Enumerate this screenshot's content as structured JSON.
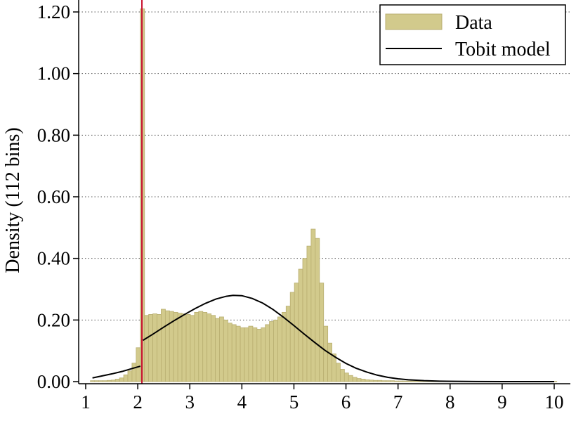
{
  "chart_data": {
    "type": "histogram",
    "ylabel": "Density (112 bins)",
    "xlim": [
      1,
      10
    ],
    "ylim": [
      0,
      1.22
    ],
    "x_ticks": [
      1,
      2,
      3,
      4,
      5,
      6,
      7,
      8,
      9,
      10
    ],
    "x_tick_labels": [
      "1",
      "2",
      "3",
      "4",
      "5",
      "6",
      "7",
      "8",
      "9",
      "10"
    ],
    "y_ticks": [
      0,
      0.2,
      0.4,
      0.6,
      0.8,
      1.0,
      1.2
    ],
    "y_tick_labels": [
      "0.00",
      "0.20",
      "0.40",
      "0.60",
      "0.80",
      "1.00",
      "1.20"
    ],
    "grid": "horizontal dotted",
    "legend_position": "top-right",
    "censor_line_x": 2.08,
    "censor_line_color": "#c8102e",
    "bar_color": "#d2ca8c",
    "bar_edge_color": "#b8ae70",
    "series": [
      {
        "name": "Data",
        "kind": "bars",
        "bin_width": 0.081,
        "bins": [
          [
            1.13,
            0.003
          ],
          [
            1.21,
            0.003
          ],
          [
            1.29,
            0.003
          ],
          [
            1.37,
            0.003
          ],
          [
            1.45,
            0.004
          ],
          [
            1.53,
            0.005
          ],
          [
            1.61,
            0.008
          ],
          [
            1.69,
            0.012
          ],
          [
            1.77,
            0.022
          ],
          [
            1.85,
            0.035
          ],
          [
            1.93,
            0.06
          ],
          [
            2.01,
            0.11
          ],
          [
            2.09,
            1.21
          ],
          [
            2.17,
            0.215
          ],
          [
            2.25,
            0.218
          ],
          [
            2.33,
            0.22
          ],
          [
            2.41,
            0.218
          ],
          [
            2.49,
            0.235
          ],
          [
            2.57,
            0.23
          ],
          [
            2.65,
            0.228
          ],
          [
            2.73,
            0.225
          ],
          [
            2.81,
            0.222
          ],
          [
            2.89,
            0.22
          ],
          [
            2.97,
            0.218
          ],
          [
            3.05,
            0.215
          ],
          [
            3.13,
            0.225
          ],
          [
            3.21,
            0.228
          ],
          [
            3.29,
            0.225
          ],
          [
            3.37,
            0.22
          ],
          [
            3.45,
            0.215
          ],
          [
            3.53,
            0.205
          ],
          [
            3.61,
            0.21
          ],
          [
            3.69,
            0.2
          ],
          [
            3.77,
            0.19
          ],
          [
            3.85,
            0.185
          ],
          [
            3.93,
            0.18
          ],
          [
            4.01,
            0.175
          ],
          [
            4.09,
            0.175
          ],
          [
            4.17,
            0.18
          ],
          [
            4.25,
            0.175
          ],
          [
            4.33,
            0.17
          ],
          [
            4.41,
            0.175
          ],
          [
            4.49,
            0.185
          ],
          [
            4.57,
            0.195
          ],
          [
            4.65,
            0.2
          ],
          [
            4.73,
            0.21
          ],
          [
            4.81,
            0.225
          ],
          [
            4.89,
            0.245
          ],
          [
            4.97,
            0.29
          ],
          [
            5.05,
            0.32
          ],
          [
            5.13,
            0.365
          ],
          [
            5.21,
            0.4
          ],
          [
            5.29,
            0.44
          ],
          [
            5.37,
            0.495
          ],
          [
            5.45,
            0.465
          ],
          [
            5.53,
            0.32
          ],
          [
            5.61,
            0.18
          ],
          [
            5.69,
            0.125
          ],
          [
            5.77,
            0.09
          ],
          [
            5.85,
            0.06
          ],
          [
            5.93,
            0.04
          ],
          [
            6.01,
            0.028
          ],
          [
            6.09,
            0.02
          ],
          [
            6.17,
            0.014
          ],
          [
            6.25,
            0.01
          ],
          [
            6.33,
            0.008
          ],
          [
            6.41,
            0.006
          ],
          [
            6.49,
            0.005
          ],
          [
            6.57,
            0.004
          ],
          [
            6.65,
            0.004
          ],
          [
            6.73,
            0.003
          ],
          [
            6.81,
            0.003
          ],
          [
            6.89,
            0.003
          ],
          [
            6.97,
            0.002
          ],
          [
            7.05,
            0.002
          ],
          [
            7.13,
            0.002
          ],
          [
            7.21,
            0.002
          ],
          [
            7.29,
            0.002
          ],
          [
            7.37,
            0.002
          ],
          [
            7.45,
            0.002
          ],
          [
            7.53,
            0.002
          ],
          [
            7.61,
            0.002
          ],
          [
            7.69,
            0.001
          ],
          [
            7.77,
            0.001
          ],
          [
            7.85,
            0.001
          ],
          [
            7.93,
            0.001
          ],
          [
            8.01,
            0.001
          ],
          [
            8.09,
            0.001
          ],
          [
            8.17,
            0.001
          ],
          [
            8.25,
            0.001
          ],
          [
            8.33,
            0.001
          ],
          [
            8.41,
            0.001
          ],
          [
            8.49,
            0.001
          ],
          [
            8.57,
            0.001
          ],
          [
            8.65,
            0.001
          ],
          [
            8.73,
            0.001
          ],
          [
            8.81,
            0.001
          ],
          [
            8.89,
            0.001
          ],
          [
            8.97,
            0.001
          ],
          [
            9.05,
            0.001
          ],
          [
            9.13,
            0.001
          ],
          [
            9.21,
            0.001
          ],
          [
            9.29,
            0.001
          ],
          [
            9.37,
            0.001
          ],
          [
            9.45,
            0.001
          ],
          [
            9.53,
            0.001
          ],
          [
            9.61,
            0.001
          ],
          [
            9.69,
            0.001
          ],
          [
            9.77,
            0.001
          ],
          [
            9.85,
            0.001
          ],
          [
            9.93,
            0.001
          ],
          [
            10.01,
            0.001
          ]
        ]
      },
      {
        "name": "Tobit model",
        "kind": "line",
        "color": "#000000",
        "segments": [
          {
            "x": [
              1.13,
              1.3,
              1.5,
              1.7,
              1.9,
              2.05
            ],
            "y": [
              0.012,
              0.018,
              0.025,
              0.033,
              0.043,
              0.05
            ]
          },
          {
            "x": [
              2.1,
              2.3,
              2.5,
              2.7,
              2.9,
              3.1,
              3.3,
              3.5,
              3.7,
              3.83,
              4.0,
              4.2,
              4.4,
              4.6,
              4.8,
              5.0,
              5.2,
              5.4,
              5.6,
              5.8,
              6.0,
              6.2,
              6.4,
              6.6,
              6.8,
              7.0,
              7.2,
              7.5,
              7.8,
              8.1,
              8.5,
              9.0,
              9.5,
              10.0
            ],
            "y": [
              0.134,
              0.155,
              0.177,
              0.198,
              0.218,
              0.237,
              0.254,
              0.268,
              0.277,
              0.28,
              0.279,
              0.27,
              0.255,
              0.234,
              0.209,
              0.182,
              0.154,
              0.127,
              0.101,
              0.079,
              0.059,
              0.043,
              0.031,
              0.021,
              0.014,
              0.009,
              0.006,
              0.003,
              0.0015,
              0.0008,
              0.0003,
              0.0001,
              0.0,
              0.0
            ]
          }
        ]
      }
    ]
  }
}
